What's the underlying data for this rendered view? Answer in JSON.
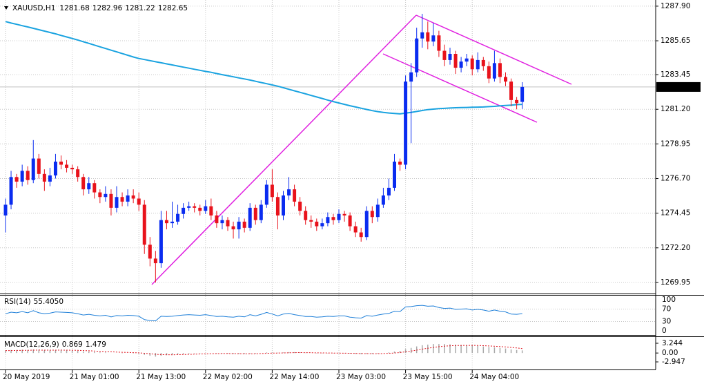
{
  "chart_data": {
    "type": "candlestick",
    "symbol": "XAUUSD,H1",
    "candles": [
      [
        1274.3,
        1275.4,
        1273.2,
        1275.0
      ],
      [
        1275.0,
        1277.2,
        1274.7,
        1276.8
      ],
      [
        1276.8,
        1277.0,
        1276.1,
        1276.5
      ],
      [
        1276.5,
        1277.6,
        1276.2,
        1277.2
      ],
      [
        1277.2,
        1277.5,
        1276.3,
        1276.6
      ],
      [
        1276.6,
        1279.2,
        1276.4,
        1278.0
      ],
      [
        1278.0,
        1278.3,
        1276.7,
        1277.0
      ],
      [
        1277.0,
        1277.3,
        1275.9,
        1276.5
      ],
      [
        1276.5,
        1277.4,
        1276.2,
        1276.9
      ],
      [
        1276.9,
        1278.3,
        1276.7,
        1277.8
      ],
      [
        1277.8,
        1278.2,
        1277.3,
        1277.6
      ],
      [
        1277.6,
        1277.9,
        1277.1,
        1277.4
      ],
      [
        1277.4,
        1277.6,
        1277.0,
        1277.3
      ],
      [
        1277.3,
        1277.5,
        1276.5,
        1276.8
      ],
      [
        1276.8,
        1277.0,
        1275.6,
        1276.0
      ],
      [
        1276.0,
        1276.8,
        1275.7,
        1276.4
      ],
      [
        1276.4,
        1276.6,
        1275.4,
        1275.8
      ],
      [
        1275.8,
        1276.0,
        1275.1,
        1275.5
      ],
      [
        1275.5,
        1276.2,
        1275.2,
        1275.7
      ],
      [
        1275.7,
        1276.0,
        1274.3,
        1274.8
      ],
      [
        1274.8,
        1276.2,
        1274.5,
        1275.5
      ],
      [
        1275.5,
        1275.8,
        1274.9,
        1275.2
      ],
      [
        1275.2,
        1276.0,
        1274.9,
        1275.6
      ],
      [
        1275.6,
        1276.0,
        1275.1,
        1275.4
      ],
      [
        1275.4,
        1275.8,
        1274.6,
        1275.0
      ],
      [
        1275.0,
        1275.3,
        1271.8,
        1272.4
      ],
      [
        1272.4,
        1272.9,
        1271.0,
        1271.5
      ],
      [
        1271.5,
        1272.0,
        1269.95,
        1271.2
      ],
      [
        1271.2,
        1274.6,
        1270.9,
        1274.0
      ],
      [
        1274.0,
        1274.6,
        1273.4,
        1273.8
      ],
      [
        1273.8,
        1275.2,
        1273.5,
        1273.9
      ],
      [
        1273.9,
        1275.0,
        1273.7,
        1274.4
      ],
      [
        1274.4,
        1275.1,
        1274.1,
        1274.8
      ],
      [
        1274.8,
        1275.2,
        1274.6,
        1274.9
      ],
      [
        1274.9,
        1275.1,
        1274.5,
        1274.8
      ],
      [
        1274.8,
        1275.0,
        1274.3,
        1274.6
      ],
      [
        1274.6,
        1275.3,
        1274.4,
        1274.9
      ],
      [
        1274.9,
        1275.4,
        1274.0,
        1274.3
      ],
      [
        1274.3,
        1274.6,
        1273.5,
        1273.8
      ],
      [
        1273.8,
        1274.3,
        1273.4,
        1274.0
      ],
      [
        1274.0,
        1274.2,
        1273.3,
        1273.6
      ],
      [
        1273.6,
        1273.9,
        1272.8,
        1273.4
      ],
      [
        1273.4,
        1274.2,
        1272.8,
        1273.9
      ],
      [
        1273.9,
        1274.1,
        1273.2,
        1273.5
      ],
      [
        1273.5,
        1275.1,
        1273.3,
        1274.8
      ],
      [
        1274.8,
        1275.0,
        1273.7,
        1274.0
      ],
      [
        1274.0,
        1275.3,
        1273.8,
        1275.0
      ],
      [
        1275.0,
        1276.6,
        1274.8,
        1276.3
      ],
      [
        1276.3,
        1277.3,
        1275.2,
        1275.5
      ],
      [
        1275.5,
        1275.8,
        1273.4,
        1274.3
      ],
      [
        1274.3,
        1275.9,
        1274.0,
        1275.6
      ],
      [
        1275.6,
        1276.8,
        1275.3,
        1276.0
      ],
      [
        1276.0,
        1276.3,
        1274.9,
        1275.2
      ],
      [
        1275.2,
        1275.5,
        1274.3,
        1274.6
      ],
      [
        1274.6,
        1274.9,
        1273.7,
        1274.0
      ],
      [
        1274.0,
        1274.3,
        1273.5,
        1273.9
      ],
      [
        1273.9,
        1274.1,
        1273.3,
        1273.6
      ],
      [
        1273.6,
        1274.1,
        1273.4,
        1273.8
      ],
      [
        1273.8,
        1274.5,
        1273.6,
        1274.2
      ],
      [
        1274.2,
        1274.4,
        1273.7,
        1274.0
      ],
      [
        1274.0,
        1274.7,
        1273.8,
        1274.4
      ],
      [
        1274.4,
        1274.6,
        1273.9,
        1274.3
      ],
      [
        1274.3,
        1274.5,
        1273.3,
        1273.6
      ],
      [
        1273.6,
        1273.9,
        1272.9,
        1273.2
      ],
      [
        1273.2,
        1273.5,
        1272.6,
        1272.9
      ],
      [
        1272.9,
        1274.9,
        1272.7,
        1274.6
      ],
      [
        1274.6,
        1274.9,
        1273.8,
        1274.2
      ],
      [
        1274.2,
        1275.4,
        1273.9,
        1275.0
      ],
      [
        1275.0,
        1276.1,
        1274.8,
        1275.6
      ],
      [
        1275.6,
        1276.7,
        1275.3,
        1276.1
      ],
      [
        1276.1,
        1278.3,
        1275.9,
        1277.8
      ],
      [
        1277.8,
        1278.0,
        1277.2,
        1277.6
      ],
      [
        1277.6,
        1283.4,
        1277.3,
        1283.0
      ],
      [
        1283.0,
        1284.2,
        1279.0,
        1283.6
      ],
      [
        1283.6,
        1286.5,
        1283.3,
        1285.8
      ],
      [
        1285.8,
        1287.4,
        1285.2,
        1286.2
      ],
      [
        1286.2,
        1286.9,
        1285.1,
        1285.6
      ],
      [
        1285.6,
        1286.8,
        1285.3,
        1286.0
      ],
      [
        1286.0,
        1286.3,
        1284.6,
        1285.0
      ],
      [
        1285.0,
        1285.4,
        1284.0,
        1284.4
      ],
      [
        1284.4,
        1285.2,
        1284.1,
        1284.8
      ],
      [
        1284.8,
        1285.0,
        1283.5,
        1283.9
      ],
      [
        1283.9,
        1284.6,
        1283.6,
        1284.3
      ],
      [
        1284.3,
        1284.8,
        1284.0,
        1284.5
      ],
      [
        1284.5,
        1284.7,
        1283.4,
        1283.8
      ],
      [
        1283.8,
        1284.9,
        1283.6,
        1284.4
      ],
      [
        1284.4,
        1284.6,
        1283.7,
        1284.0
      ],
      [
        1284.0,
        1284.3,
        1282.9,
        1283.2
      ],
      [
        1283.2,
        1285.0,
        1283.0,
        1284.2
      ],
      [
        1284.2,
        1284.5,
        1282.9,
        1283.3
      ],
      [
        1283.3,
        1283.6,
        1282.7,
        1283.0
      ],
      [
        1283.0,
        1283.2,
        1281.4,
        1281.8
      ],
      [
        1281.8,
        1282.0,
        1281.2,
        1281.6
      ],
      [
        1281.68,
        1282.96,
        1281.22,
        1282.65
      ]
    ],
    "categories": [
      "20 May 2019",
      null,
      null,
      null,
      null,
      null,
      null,
      null,
      null,
      null,
      null,
      null,
      "21 May 01:00",
      null,
      null,
      null,
      null,
      null,
      null,
      null,
      null,
      null,
      null,
      null,
      "21 May 13:00",
      null,
      null,
      null,
      null,
      null,
      null,
      null,
      null,
      null,
      null,
      null,
      "22 May 02:00",
      null,
      null,
      null,
      null,
      null,
      null,
      null,
      null,
      null,
      null,
      null,
      "22 May 14:00",
      null,
      null,
      null,
      null,
      null,
      null,
      null,
      null,
      null,
      null,
      null,
      "23 May 03:00",
      null,
      null,
      null,
      null,
      null,
      null,
      null,
      null,
      null,
      null,
      null,
      "23 May 15:00",
      null,
      null,
      null,
      null,
      null,
      null,
      null,
      null,
      null,
      null,
      null,
      "24 May 04:00",
      null,
      null,
      null,
      null,
      null,
      null,
      null,
      null,
      null
    ],
    "ylim": [
      1269.23,
      1288.3
    ],
    "yticks": [
      {
        "value": 1287.9,
        "label": "1287.90"
      },
      1285.65,
      1283.45,
      {
        "value": 1281.2,
        "label": "1281.20"
      },
      1278.95,
      {
        "value": 1276.7,
        "label": "1276.70"
      },
      1274.45,
      {
        "value": 1272.2,
        "label": "1272.20"
      },
      1269.95
    ],
    "grid": true,
    "up_color": "#0a2cf0",
    "down_color": "#e8121b",
    "ma": {
      "color": "#1aa3e0",
      "values": [
        1286.9,
        1286.8,
        1286.72,
        1286.63,
        1286.55,
        1286.46,
        1286.37,
        1286.28,
        1286.19,
        1286.1,
        1286.0,
        1285.9,
        1285.8,
        1285.7,
        1285.59,
        1285.48,
        1285.37,
        1285.26,
        1285.15,
        1285.04,
        1284.93,
        1284.82,
        1284.71,
        1284.6,
        1284.5,
        1284.43,
        1284.36,
        1284.29,
        1284.22,
        1284.15,
        1284.08,
        1284.01,
        1283.94,
        1283.87,
        1283.8,
        1283.73,
        1283.66,
        1283.6,
        1283.52,
        1283.45,
        1283.38,
        1283.31,
        1283.24,
        1283.17,
        1283.1,
        1283.02,
        1282.94,
        1282.86,
        1282.78,
        1282.7,
        1282.6,
        1282.5,
        1282.4,
        1282.3,
        1282.2,
        1282.1,
        1282.0,
        1281.9,
        1281.8,
        1281.7,
        1281.61,
        1281.52,
        1281.43,
        1281.35,
        1281.27,
        1281.19,
        1281.11,
        1281.05,
        1281.0,
        1280.96,
        1280.93,
        1280.9,
        1280.95,
        1281.0,
        1281.06,
        1281.12,
        1281.18,
        1281.21,
        1281.24,
        1281.26,
        1281.28,
        1281.3,
        1281.31,
        1281.32,
        1281.33,
        1281.34,
        1281.35,
        1281.37,
        1281.39,
        1281.42,
        1281.45,
        1281.47,
        1281.5,
        1281.52
      ]
    },
    "rsi": {
      "name": "RSI(14)",
      "color": "#1e7fd8",
      "ylim": [
        0,
        100
      ],
      "yticks": [
        0,
        30,
        70,
        100
      ],
      "values": [
        55,
        60,
        58,
        62,
        58,
        65,
        58,
        55,
        57,
        61,
        60,
        59,
        58,
        55,
        51,
        53,
        50,
        48,
        50,
        45,
        49,
        48,
        50,
        49,
        47,
        36,
        33,
        32,
        47,
        46,
        47,
        49,
        51,
        52,
        51,
        50,
        52,
        49,
        46,
        47,
        45,
        44,
        47,
        45,
        52,
        48,
        53,
        59,
        54,
        48,
        54,
        56,
        52,
        49,
        46,
        46,
        44,
        45,
        47,
        46,
        48,
        48,
        44,
        42,
        41,
        49,
        47,
        51,
        54,
        56,
        63,
        62,
        77,
        78,
        81,
        82,
        79,
        80,
        75,
        72,
        73,
        69,
        70,
        71,
        67,
        69,
        67,
        63,
        67,
        63,
        61,
        54,
        53,
        55.405
      ],
      "value_labels": [
        null,
        null,
        null,
        null,
        null,
        null,
        null,
        null,
        null,
        null,
        null,
        null,
        null,
        null,
        null,
        null,
        null,
        null,
        null,
        null,
        null,
        null,
        null,
        null,
        null,
        null,
        null,
        null,
        null,
        null,
        null,
        null,
        null,
        null,
        null,
        null,
        null,
        null,
        null,
        null,
        null,
        null,
        null,
        null,
        null,
        null,
        null,
        null,
        null,
        null,
        null,
        null,
        null,
        null,
        null,
        null,
        null,
        null,
        null,
        null,
        null,
        null,
        null,
        null,
        null,
        null,
        null,
        null,
        null,
        null,
        null,
        null,
        null,
        null,
        null,
        null,
        null,
        null,
        null,
        null,
        null,
        null,
        null,
        null,
        null,
        null,
        null,
        null,
        null,
        null,
        null,
        null,
        null,
        "55.4050"
      ]
    },
    "macd": {
      "name": "MACD(12,26,9)",
      "ylim": [
        -2.947,
        3.244
      ],
      "yticks": [
        3.244,
        {
          "value": 0,
          "label": "0.00"
        },
        -2.947
      ],
      "histogram": {
        "color": "#a8a8a8",
        "values": [
          0.9,
          1.0,
          1.0,
          1.1,
          1.0,
          1.2,
          1.1,
          0.9,
          0.9,
          1.0,
          1.0,
          0.9,
          0.8,
          0.7,
          0.5,
          0.5,
          0.3,
          0.2,
          0.2,
          0.0,
          0.0,
          -0.1,
          0.0,
          -0.1,
          -0.2,
          -0.6,
          -0.9,
          -1.2,
          -0.9,
          -0.7,
          -0.6,
          -0.4,
          -0.3,
          -0.2,
          -0.1,
          -0.1,
          0.0,
          0.0,
          -0.1,
          -0.1,
          -0.2,
          -0.3,
          -0.3,
          -0.3,
          -0.2,
          -0.2,
          0.0,
          0.2,
          0.2,
          0.1,
          0.2,
          0.3,
          0.3,
          0.2,
          0.1,
          0.0,
          -0.1,
          -0.1,
          -0.1,
          -0.1,
          -0.1,
          -0.1,
          -0.2,
          -0.3,
          -0.4,
          -0.3,
          -0.3,
          -0.2,
          0.0,
          0.2,
          0.5,
          0.7,
          1.3,
          1.7,
          2.2,
          2.6,
          2.8,
          3.0,
          3.0,
          3.0,
          2.9,
          2.8,
          2.7,
          2.6,
          2.5,
          2.4,
          2.2,
          2.0,
          1.9,
          1.7,
          1.5,
          1.2,
          1.0,
          0.869
        ]
      },
      "signal": {
        "color": "#e0141e",
        "values": [
          0.8,
          0.82,
          0.85,
          0.88,
          0.9,
          0.94,
          0.97,
          0.96,
          0.95,
          0.96,
          0.97,
          0.96,
          0.93,
          0.88,
          0.81,
          0.75,
          0.66,
          0.57,
          0.5,
          0.4,
          0.32,
          0.24,
          0.19,
          0.13,
          0.06,
          -0.07,
          -0.24,
          -0.43,
          -0.53,
          -0.57,
          -0.58,
          -0.54,
          -0.5,
          -0.44,
          -0.37,
          -0.32,
          -0.26,
          -0.21,
          -0.19,
          -0.17,
          -0.18,
          -0.2,
          -0.22,
          -0.24,
          -0.23,
          -0.23,
          -0.18,
          -0.1,
          -0.04,
          -0.01,
          0.03,
          0.08,
          0.12,
          0.14,
          0.13,
          0.1,
          0.06,
          0.03,
          0.0,
          -0.02,
          -0.04,
          -0.05,
          -0.08,
          -0.12,
          -0.18,
          -0.2,
          -0.22,
          -0.22,
          -0.18,
          -0.1,
          0.02,
          0.16,
          0.39,
          0.65,
          0.96,
          1.29,
          1.59,
          1.87,
          2.1,
          2.28,
          2.4,
          2.48,
          2.52,
          2.54,
          2.53,
          2.5,
          2.44,
          2.35,
          2.26,
          2.15,
          2.02,
          1.86,
          1.69,
          1.479
        ]
      }
    }
  }
}
